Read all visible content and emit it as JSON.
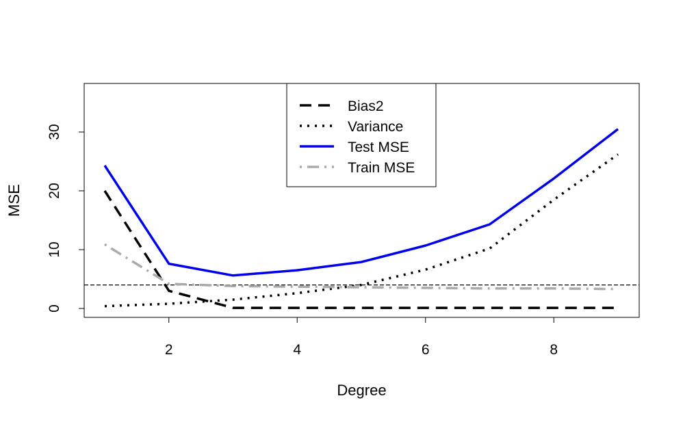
{
  "chart_data": {
    "type": "line",
    "title": "",
    "xlabel": "Degree",
    "ylabel": "MSE",
    "xlim": [
      1,
      9
    ],
    "ylim": [
      0,
      36
    ],
    "x_ticks": [
      2,
      4,
      6,
      8
    ],
    "y_ticks": [
      0,
      10,
      20,
      30
    ],
    "grid": false,
    "legend_position": "top-center",
    "reference_line": {
      "y": 4,
      "style": "dashed",
      "color": "#000000"
    },
    "x": [
      1,
      2,
      3,
      4,
      5,
      6,
      7,
      8,
      9
    ],
    "series": [
      {
        "name": "Bias2",
        "values": [
          20.0,
          3.0,
          0.1,
          0.1,
          0.1,
          0.1,
          0.1,
          0.1,
          0.1
        ],
        "color": "#000000",
        "style": "dashed"
      },
      {
        "name": "Variance",
        "values": [
          0.4,
          0.8,
          1.5,
          2.6,
          4.0,
          6.6,
          10.2,
          18.5,
          26.2
        ],
        "color": "#000000",
        "style": "dotted"
      },
      {
        "name": "Test MSE",
        "values": [
          24.3,
          7.6,
          5.6,
          6.5,
          7.9,
          10.7,
          14.3,
          22.1,
          30.5
        ],
        "color": "#0000ee",
        "style": "solid"
      },
      {
        "name": "Train MSE",
        "values": [
          10.9,
          4.2,
          3.8,
          3.7,
          3.6,
          3.5,
          3.4,
          3.4,
          3.3
        ],
        "color": "#aaaaaa",
        "style": "dotdash"
      }
    ]
  }
}
